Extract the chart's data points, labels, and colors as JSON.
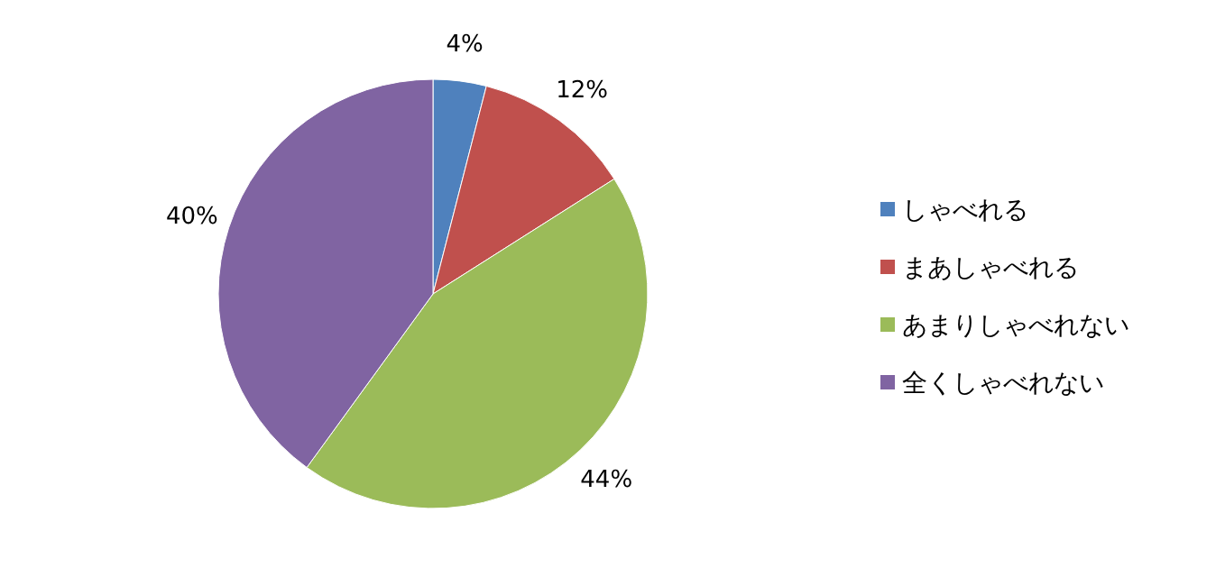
{
  "chart_data": {
    "type": "pie",
    "categories": [
      "しゃべれる",
      "まあしゃべれる",
      "あまりしゃべれない",
      "全くしゃべれない"
    ],
    "values": [
      4,
      12,
      44,
      40
    ],
    "colors": [
      "#4f81bd",
      "#c0504d",
      "#9bbb59",
      "#8064a2"
    ],
    "value_labels": [
      "4%",
      "12%",
      "44%",
      "40%"
    ],
    "legend": "right"
  }
}
